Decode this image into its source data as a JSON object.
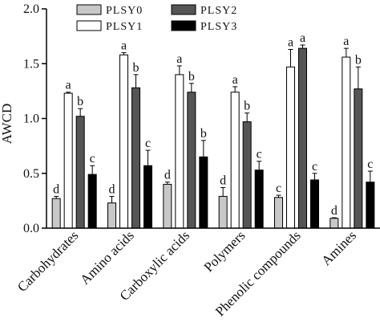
{
  "chart_data": {
    "type": "bar",
    "title": "",
    "xlabel": "",
    "ylabel": "AWCD",
    "ylim": [
      0,
      2.0
    ],
    "yticks": [
      "0.0",
      "0.5",
      "1.0",
      "1.5",
      "2.0"
    ],
    "grid": false,
    "legend_position": "top-left",
    "categories": [
      "Carbohydrates",
      "Amino acids",
      "Carboxylic acids",
      "Polymers",
      "Phenolic compounds",
      "Amines"
    ],
    "series": [
      {
        "name": "PLSY0",
        "color": "#c8c8c8",
        "values": [
          0.27,
          0.23,
          0.4,
          0.29,
          0.28,
          0.09
        ],
        "errors": [
          0.02,
          0.06,
          0.02,
          0.08,
          0.02,
          0.005
        ],
        "letters": [
          "d",
          "d",
          "d",
          "d",
          "c",
          "d"
        ]
      },
      {
        "name": "PLSY1",
        "color": "#ffffff",
        "values": [
          1.23,
          1.58,
          1.4,
          1.24,
          1.47,
          1.56
        ],
        "errors": [
          0.01,
          0.02,
          0.08,
          0.05,
          0.16,
          0.08
        ],
        "letters": [
          "a",
          "a",
          "a",
          "a",
          "a",
          "a"
        ]
      },
      {
        "name": "PLSY2",
        "color": "#555555",
        "values": [
          1.02,
          1.28,
          1.24,
          0.97,
          1.64,
          1.27
        ],
        "errors": [
          0.07,
          0.12,
          0.08,
          0.08,
          0.03,
          0.2
        ],
        "letters": [
          "b",
          "b",
          "b",
          "b",
          "a",
          "b"
        ]
      },
      {
        "name": "PLSY3",
        "color": "#000000",
        "values": [
          0.49,
          0.57,
          0.65,
          0.53,
          0.44,
          0.42
        ],
        "errors": [
          0.08,
          0.14,
          0.15,
          0.08,
          0.06,
          0.1
        ],
        "letters": [
          "c",
          "c",
          "b",
          "c",
          "c",
          "c"
        ]
      }
    ]
  }
}
